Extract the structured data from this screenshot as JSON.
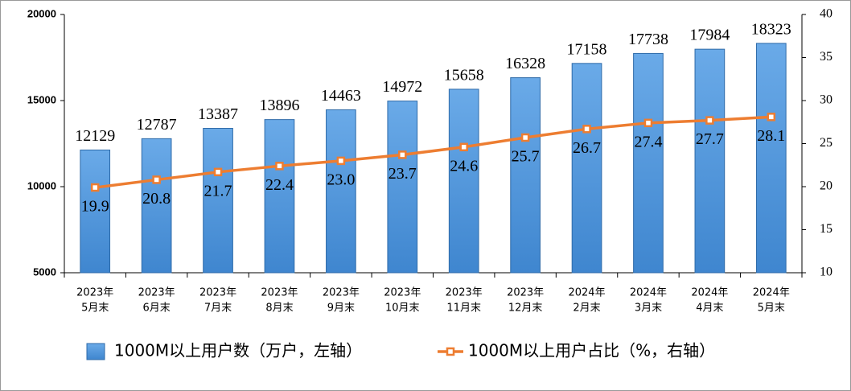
{
  "chart_data": {
    "type": "bar-line",
    "categories": [
      [
        "2023年",
        "5月末"
      ],
      [
        "2023年",
        "6月末"
      ],
      [
        "2023年",
        "7月末"
      ],
      [
        "2023年",
        "8月末"
      ],
      [
        "2023年",
        "9月末"
      ],
      [
        "2023年",
        "10月末"
      ],
      [
        "2023年",
        "11月末"
      ],
      [
        "2023年",
        "12月末"
      ],
      [
        "2024年",
        "2月末"
      ],
      [
        "2024年",
        "3月末"
      ],
      [
        "2024年",
        "4月末"
      ],
      [
        "2024年",
        "5月末"
      ]
    ],
    "series": [
      {
        "name": "1000M以上用户数（万户，左轴）",
        "type": "bar",
        "color": "#5b9bd5",
        "values": [
          12129,
          12787,
          13387,
          13896,
          14463,
          14972,
          15658,
          16328,
          17158,
          17738,
          17984,
          18323
        ]
      },
      {
        "name": "1000M以上用户占比（%，右轴）",
        "type": "line",
        "axis": "y2",
        "color": "#ed7d31",
        "values": [
          19.9,
          20.8,
          21.7,
          22.4,
          23.0,
          23.7,
          24.6,
          25.7,
          26.7,
          27.4,
          27.7,
          28.1
        ],
        "value_labels": [
          "19.9",
          "20.8",
          "21.7",
          "22.4",
          "23.0",
          "23.7",
          "24.6",
          "25.7",
          "26.7",
          "27.4",
          "27.7",
          "28.1"
        ]
      }
    ],
    "ylim": [
      5000,
      20000
    ],
    "yticks": [
      5000,
      10000,
      15000,
      20000
    ],
    "y2lim": [
      10,
      40
    ],
    "y2ticks": [
      10,
      15,
      20,
      25,
      30,
      35,
      40
    ],
    "grid": false,
    "legend": "bottom"
  }
}
